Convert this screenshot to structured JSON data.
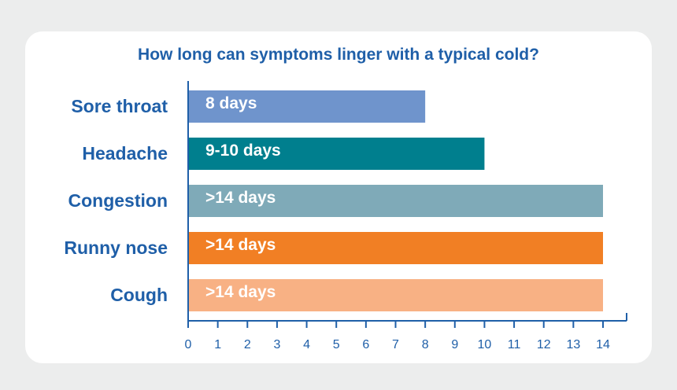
{
  "chart_data": {
    "type": "bar",
    "orientation": "horizontal",
    "title": "How long can symptoms linger with a typical cold?",
    "xlabel": "",
    "ylabel": "",
    "xlim": [
      0,
      14
    ],
    "grid": false,
    "categories": [
      "Sore throat",
      "Headache",
      "Congestion",
      "Runny nose",
      "Cough"
    ],
    "values": [
      8,
      10,
      14,
      14,
      14
    ],
    "data_labels": [
      "8 days",
      "9-10 days",
      ">14 days",
      ">14 days",
      ">14 days"
    ],
    "bar_colors": [
      "#6f94cc",
      "#007f8e",
      "#7faab8",
      "#f17f24",
      "#f8b184"
    ],
    "x_ticks": [
      "0",
      "1",
      "2",
      "3",
      "4",
      "5",
      "6",
      "7",
      "8",
      "9",
      "10",
      "11",
      "12",
      "13",
      "14"
    ],
    "axis_color": "#1f5fa8"
  }
}
